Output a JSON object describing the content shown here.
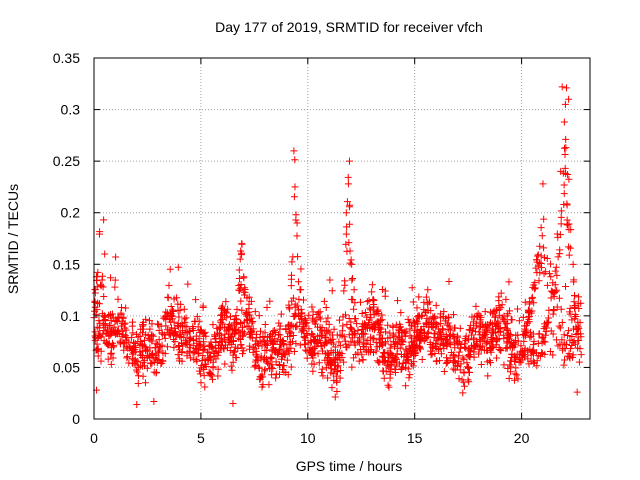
{
  "chart_data": {
    "type": "scatter",
    "title": "Day 177 of 2019, SRMTID for receiver vfch",
    "xlabel": "GPS time / hours",
    "ylabel": "SRMTID / TECUs",
    "xlim": [
      0,
      23.2
    ],
    "ylim": [
      0,
      0.35
    ],
    "grid": true,
    "marker": "+",
    "color": "#ff0000",
    "xticks": [
      0,
      5,
      10,
      15,
      20
    ],
    "xtick_labels": [
      "0",
      "5",
      "10",
      "15",
      "20"
    ],
    "yticks": [
      0,
      0.05,
      0.1,
      0.15,
      0.2,
      0.25,
      0.3,
      0.35
    ],
    "ytick_labels": [
      "0",
      "0.05",
      "0.1",
      "0.15",
      "0.2",
      "0.25",
      "0.3",
      "0.35"
    ],
    "series": [
      {
        "name": "SRMTID",
        "generator": {
          "seed": 177,
          "x_range": [
            0,
            22.8
          ],
          "points_per_hour": 90,
          "baseline": 0.075,
          "spread": 0.025,
          "min_value": 0.012,
          "bursts": [
            {
              "x": 0.25,
              "width": 0.35,
              "peak": 0.19
            },
            {
              "x": 6.9,
              "width": 0.35,
              "peak": 0.18
            },
            {
              "x": 9.4,
              "width": 0.25,
              "peak": 0.26
            },
            {
              "x": 11.9,
              "width": 0.3,
              "peak": 0.25
            },
            {
              "x": 21.0,
              "width": 0.9,
              "peak": 0.2
            },
            {
              "x": 22.0,
              "width": 0.6,
              "peak": 0.32
            }
          ]
        },
        "points": [
          [
            0.12,
            0.028
          ],
          [
            0.3,
            0.13
          ],
          [
            0.45,
            0.193
          ],
          [
            0.5,
            0.16
          ],
          [
            2.0,
            0.014
          ],
          [
            2.8,
            0.017
          ],
          [
            6.5,
            0.015
          ],
          [
            9.35,
            0.26
          ],
          [
            9.4,
            0.225
          ],
          [
            9.5,
            0.19
          ],
          [
            11.95,
            0.25
          ],
          [
            11.9,
            0.228
          ],
          [
            11.8,
            0.2
          ],
          [
            21.0,
            0.228
          ],
          [
            21.9,
            0.322
          ],
          [
            22.1,
            0.321
          ],
          [
            22.05,
            0.305
          ],
          [
            22.2,
            0.31
          ],
          [
            22.0,
            0.288
          ],
          [
            22.6,
            0.026
          ],
          [
            22.5,
            0.11
          ]
        ]
      }
    ]
  }
}
